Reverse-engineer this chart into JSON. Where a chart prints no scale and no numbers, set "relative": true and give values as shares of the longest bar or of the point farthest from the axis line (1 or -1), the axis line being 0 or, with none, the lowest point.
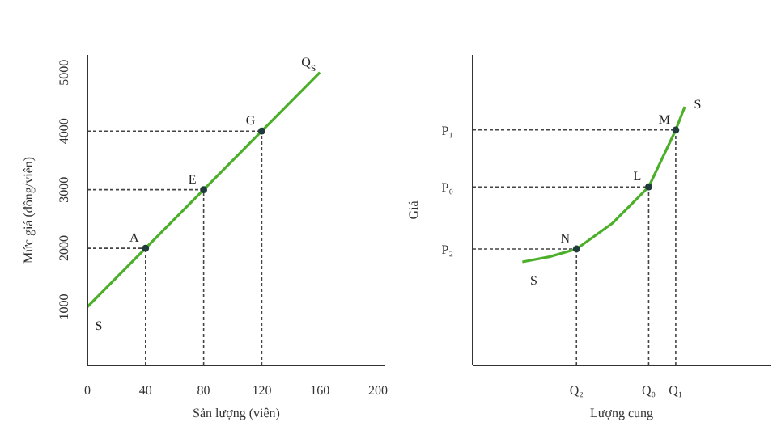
{
  "chart_data": [
    {
      "type": "line",
      "xlabel": "Sản lượng (viên)",
      "ylabel": "Mức giá (đồng/viên)",
      "xlim": [
        0,
        205
      ],
      "ylim": [
        0,
        5300
      ],
      "xticks": [
        0,
        40,
        80,
        120,
        160,
        200
      ],
      "yticks": [
        1000,
        2000,
        3000,
        4000,
        5000
      ],
      "series": [
        {
          "color": "#4caf2a",
          "x": [
            0,
            40,
            80,
            120,
            160
          ],
          "values": [
            1000,
            2000,
            3000,
            4000,
            5000
          ]
        },
        {
          "type": "scatter",
          "color": "#1f3b3b",
          "x": [
            40,
            80,
            120
          ],
          "values": [
            2000,
            3000,
            4000
          ],
          "marker": "circle"
        }
      ],
      "annotations": [
        {
          "text": "A",
          "x": 40,
          "y": 2000
        },
        {
          "text": "E",
          "x": 80,
          "y": 3000
        },
        {
          "text": "G",
          "x": 120,
          "y": 4000
        },
        {
          "text": "S",
          "x": 0,
          "y": 1000
        },
        {
          "text": "Q$_{S}$",
          "x": 160,
          "y": 5000
        }
      ]
    },
    {
      "type": "line",
      "xlabel": "Lượng cung",
      "ylabel": "Giá",
      "relative": true,
      "categories": [
        null,
        null,
        null,
        null,
        null,
        null,
        null,
        null,
        null,
        null,
        null,
        "Q₂",
        null,
        null,
        null,
        null,
        null,
        null,
        null,
        "Q₀",
        null,
        null,
        "Q₁",
        null,
        null,
        null,
        null,
        null,
        null,
        null,
        null,
        null,
        null
      ],
      "series": [
        {
          "color": "#4caf2a",
          "values": [
            null,
            null,
            null,
            null,
            null,
            0.4,
            null,
            null,
            0.42,
            null,
            null,
            0.45,
            null,
            null,
            null,
            0.55,
            null,
            null,
            null,
            0.69,
            null,
            null,
            0.91,
            1,
            null,
            null,
            null,
            null,
            null,
            null,
            null,
            null,
            null
          ]
        },
        {
          "type": "scatter",
          "color": "#1f3b3b",
          "marker": "circle",
          "values": [
            null,
            null,
            null,
            null,
            null,
            null,
            null,
            null,
            null,
            null,
            null,
            0.45,
            null,
            null,
            null,
            null,
            null,
            null,
            null,
            0.69,
            null,
            null,
            0.91,
            null,
            null,
            null,
            null,
            null,
            null,
            null,
            null,
            null,
            null
          ]
        }
      ],
      "ref_lines": [
        {
          "axis": "y",
          "value": 0.45,
          "label": "P₂",
          "line_style": "dashed"
        },
        {
          "axis": "y",
          "value": 0.69,
          "label": "P₀",
          "line_style": "dashed"
        },
        {
          "axis": "y",
          "value": 0.91,
          "label": "P₁",
          "line_style": "dashed"
        }
      ],
      "annotations": [
        {
          "text": "N",
          "y": 0.45
        },
        {
          "text": "L",
          "y": 0.69
        },
        {
          "text": "M",
          "y": 0.91
        },
        "S",
        {
          "text": "S",
          "y": 0.4
        }
      ]
    }
  ]
}
